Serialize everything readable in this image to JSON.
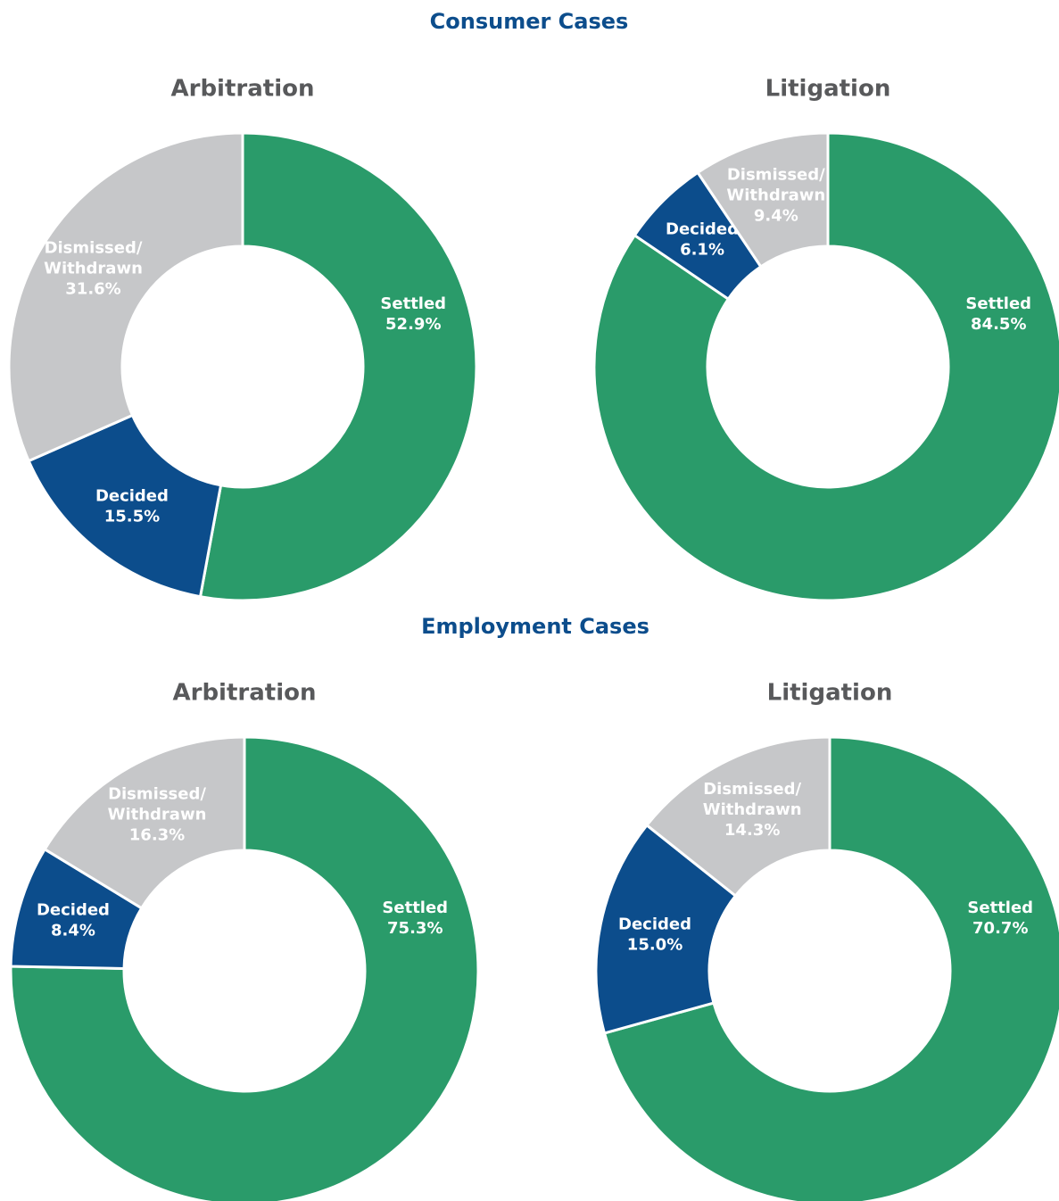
{
  "section_titles": [
    "Consumer Cases",
    "Employment Cases"
  ],
  "chart_data": [
    {
      "type": "pie",
      "donut": true,
      "title": "Arbitration",
      "categories": [
        "Settled",
        "Decided",
        "Dismissed/Withdrawn"
      ],
      "values": [
        52.9,
        15.5,
        31.6
      ],
      "value_labels": [
        "52.9%",
        "15.5%",
        "31.6%"
      ],
      "colors": [
        "#2a9b6a",
        "#0c4d8c",
        "#c6c7c9"
      ]
    },
    {
      "type": "pie",
      "donut": true,
      "title": "Litigation",
      "categories": [
        "Settled",
        "Decided",
        "Dismissed/Withdrawn"
      ],
      "values": [
        84.5,
        6.1,
        9.4
      ],
      "value_labels": [
        "84.5%",
        "6.1%",
        "9.4%"
      ],
      "colors": [
        "#2a9b6a",
        "#0c4d8c",
        "#c6c7c9"
      ]
    },
    {
      "type": "pie",
      "donut": true,
      "title": "Arbitration",
      "categories": [
        "Settled",
        "Decided",
        "Dismissed/Withdrawn"
      ],
      "values": [
        75.3,
        8.4,
        16.3
      ],
      "value_labels": [
        "75.3%",
        "8.4%",
        "16.3%"
      ],
      "colors": [
        "#2a9b6a",
        "#0c4d8c",
        "#c6c7c9"
      ]
    },
    {
      "type": "pie",
      "donut": true,
      "title": "Litigation",
      "categories": [
        "Settled",
        "Decided",
        "Dismissed/Withdrawn"
      ],
      "values": [
        70.7,
        15.0,
        14.3
      ],
      "value_labels": [
        "70.7%",
        "15.0%",
        "14.3%"
      ],
      "colors": [
        "#2a9b6a",
        "#0c4d8c",
        "#c6c7c9"
      ]
    }
  ]
}
